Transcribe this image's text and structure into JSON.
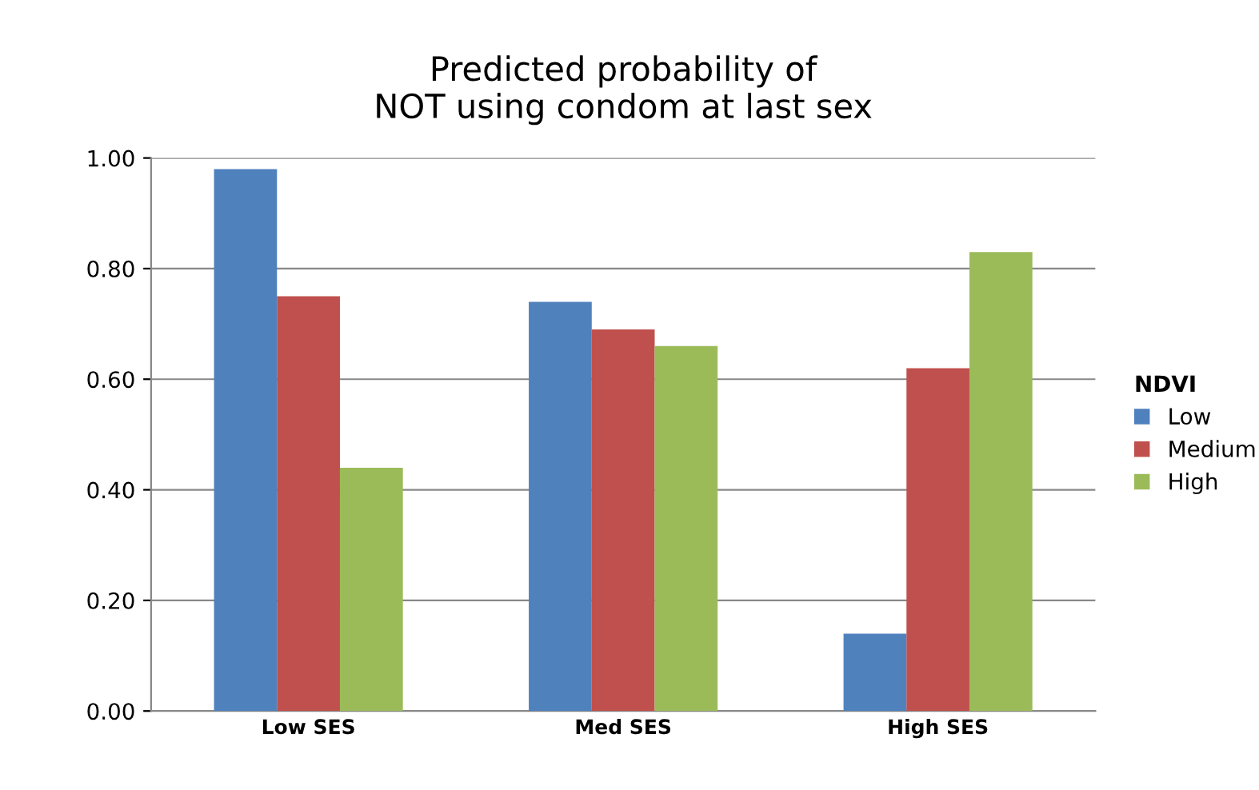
{
  "chart_data": {
    "type": "bar",
    "title": "Predicted probability of\nNOT using condom at last sex",
    "categories": [
      "Low SES",
      "Med SES",
      "High SES"
    ],
    "series": [
      {
        "name": "Low",
        "color": "#4f81bd",
        "values": [
          0.98,
          0.74,
          0.14
        ]
      },
      {
        "name": "Medium",
        "color": "#c0504d",
        "values": [
          0.75,
          0.69,
          0.62
        ]
      },
      {
        "name": "High",
        "color": "#9bbb59",
        "values": [
          0.44,
          0.66,
          0.83
        ]
      }
    ],
    "ylim": [
      0,
      1
    ],
    "yticks": [
      {
        "value": 0,
        "label": "0.00"
      },
      {
        "value": 0.2,
        "label": "0.20"
      },
      {
        "value": 0.4,
        "label": "0.40"
      },
      {
        "value": 0.6,
        "label": "0.60"
      },
      {
        "value": 0.8,
        "label": "0.80"
      },
      {
        "value": 1,
        "label": "1.00"
      }
    ],
    "grid": "y",
    "legend": "right",
    "legend_title": "NDVI"
  }
}
